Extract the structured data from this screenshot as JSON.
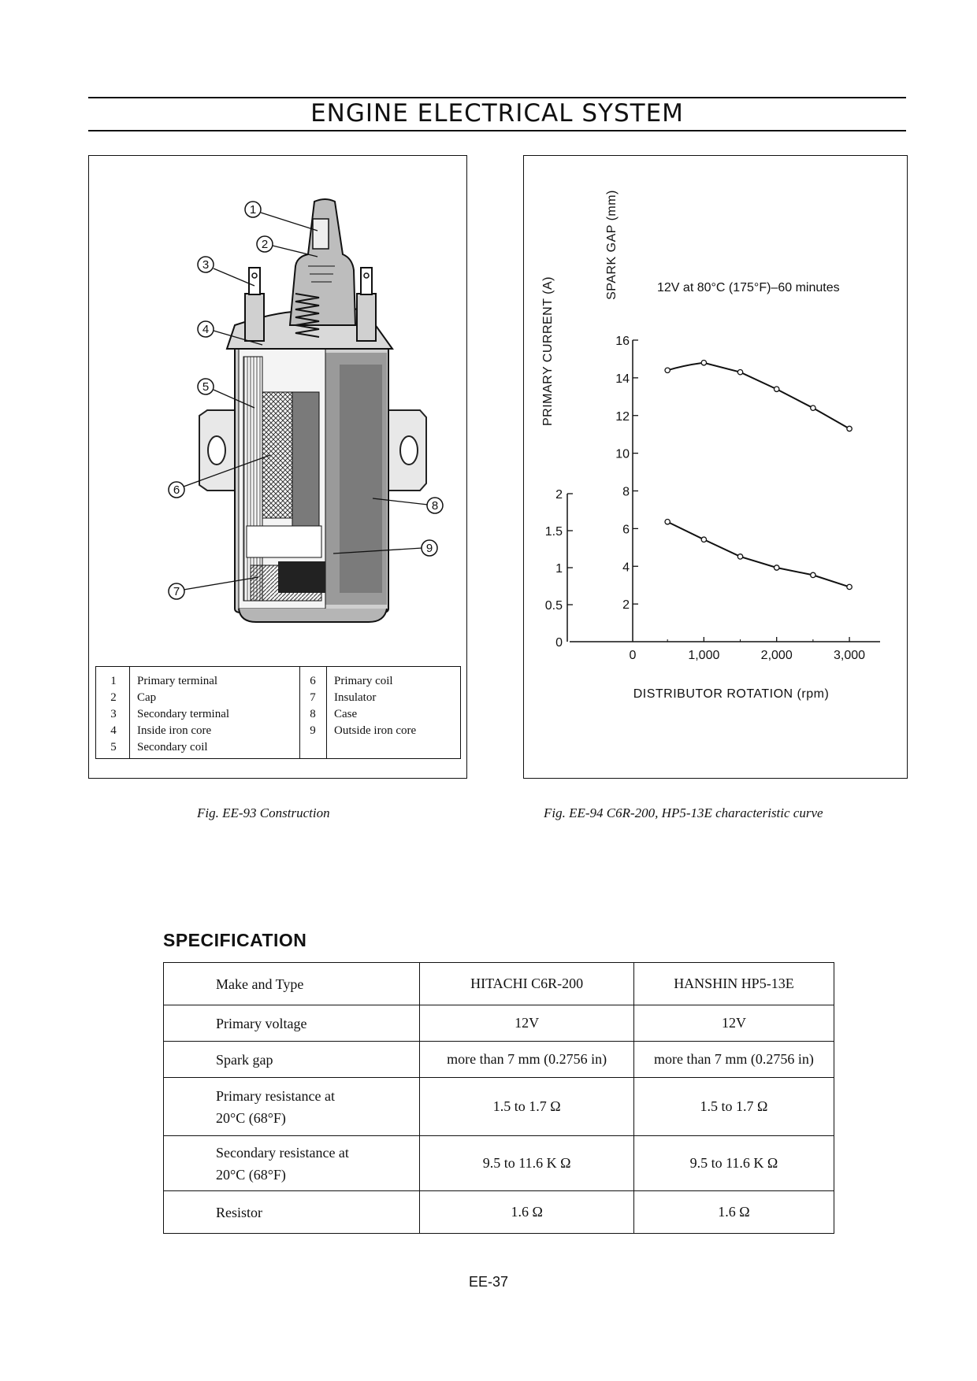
{
  "header": {
    "title": "ENGINE ELECTRICAL SYSTEM"
  },
  "figure_construction": {
    "caption": "Fig. EE-93 Construction",
    "callouts": [
      "1",
      "2",
      "3",
      "4",
      "5",
      "6",
      "7",
      "8",
      "9"
    ],
    "legend_left": [
      {
        "num": "1",
        "label": "Primary terminal"
      },
      {
        "num": "2",
        "label": "Cap"
      },
      {
        "num": "3",
        "label": "Secondary terminal"
      },
      {
        "num": "4",
        "label": "Inside iron core"
      },
      {
        "num": "5",
        "label": "Secondary coil"
      }
    ],
    "legend_right": [
      {
        "num": "6",
        "label": "Primary coil"
      },
      {
        "num": "7",
        "label": "Insulator"
      },
      {
        "num": "8",
        "label": "Case"
      },
      {
        "num": "9",
        "label": "Outside iron core"
      }
    ]
  },
  "figure_chart": {
    "caption": "Fig. EE-94 C6R-200, HP5-13E characteristic curve",
    "annotation": "12V at 80°C (175°F)–60 minutes"
  },
  "chart_data": {
    "type": "line",
    "title": "",
    "annotation": "12V at 80°C (175°F)–60 minutes",
    "xlabel": "DISTRIBUTOR ROTATION (rpm)",
    "x_ticks": [
      "0",
      "1,000",
      "2,000",
      "3,000"
    ],
    "xlim": [
      0,
      3400
    ],
    "y_axes": [
      {
        "label": "PRIMARY CURRENT (A)",
        "ticks": [
          "0",
          "0.5",
          "1",
          "1.5",
          "2"
        ],
        "ylim": [
          0,
          2
        ]
      },
      {
        "label": "SPARK GAP (mm)",
        "ticks": [
          "2",
          "4",
          "6",
          "8",
          "10",
          "12",
          "14",
          "16"
        ],
        "ylim": [
          0,
          16
        ]
      }
    ],
    "series": [
      {
        "name": "Spark gap",
        "axis": "SPARK GAP (mm)",
        "x": [
          500,
          1000,
          1500,
          2000,
          2500,
          3000
        ],
        "y": [
          14.4,
          14.8,
          14.3,
          13.4,
          12.4,
          11.3
        ]
      },
      {
        "name": "Primary current",
        "axis": "PRIMARY CURRENT (A)",
        "x": [
          500,
          1000,
          1500,
          2000,
          2500,
          3000
        ],
        "y": [
          1.62,
          1.38,
          1.15,
          1.0,
          0.9,
          0.74
        ]
      }
    ]
  },
  "specification": {
    "heading": "SPECIFICATION",
    "rows": [
      {
        "label": "Make and Type",
        "hitachi": "HITACHI  C6R-200",
        "hanshin": "HANSHIN  HP5-13E"
      },
      {
        "label": "Primary voltage",
        "hitachi": "12V",
        "hanshin": "12V"
      },
      {
        "label": "Spark gap",
        "hitachi": "more than 7 mm (0.2756 in)",
        "hanshin": "more than 7 mm (0.2756 in)"
      },
      {
        "label": "Primary resistance at\n20°C (68°F)",
        "hitachi": "1.5 to 1.7 Ω",
        "hanshin": "1.5 to 1.7 Ω"
      },
      {
        "label": "Secondary resistance at\n20°C (68°F)",
        "hitachi": "9.5 to 11.6 K Ω",
        "hanshin": "9.5 to 11.6 K Ω"
      },
      {
        "label": "Resistor",
        "hitachi": "1.6 Ω",
        "hanshin": "1.6 Ω"
      }
    ]
  },
  "footer": {
    "page_number": "EE-37"
  }
}
